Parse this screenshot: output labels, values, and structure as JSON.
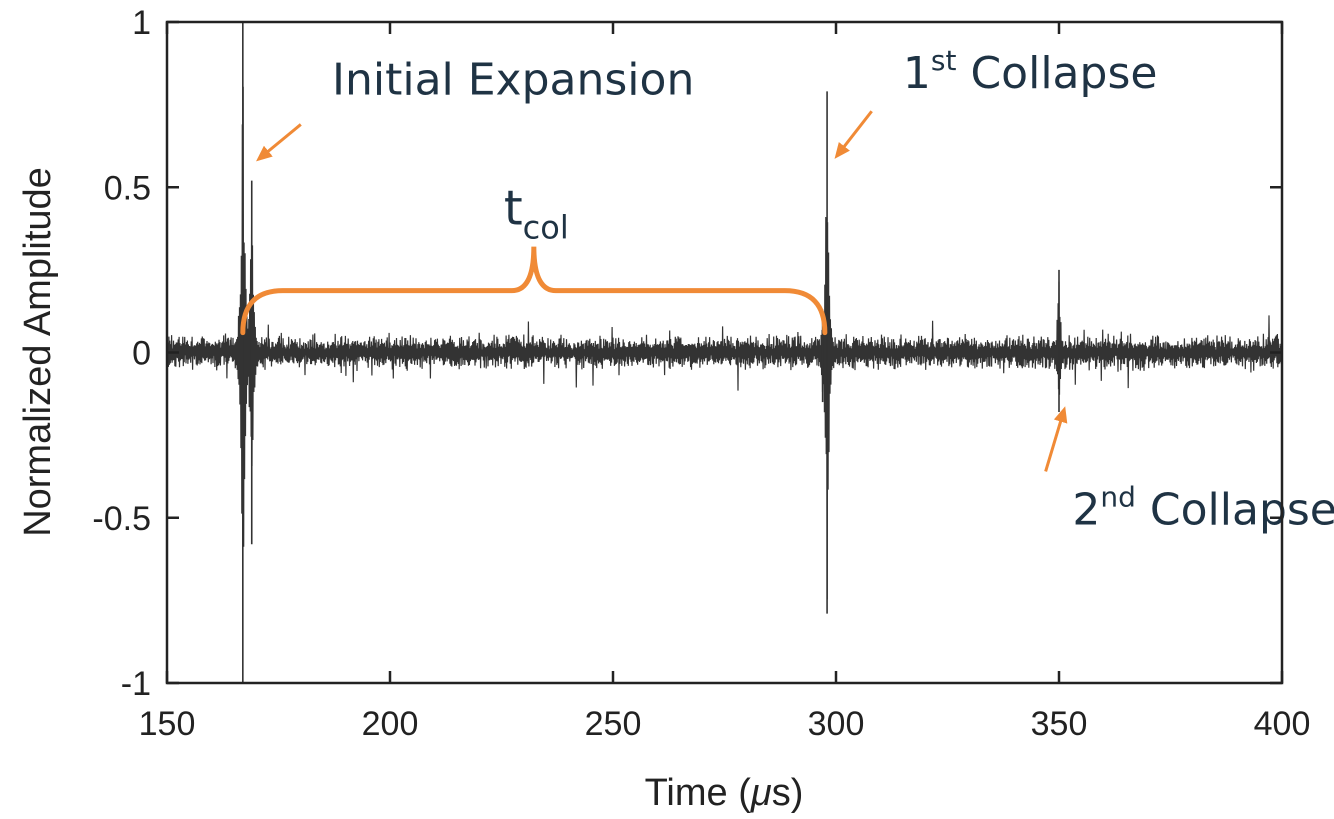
{
  "chart_data": {
    "type": "line",
    "title": "",
    "xlabel_pre": "Time (",
    "xlabel_mu": "μ",
    "xlabel_post": "s)",
    "ylabel": "Normalized Amplitude",
    "xlim": [
      150,
      400
    ],
    "ylim": [
      -1,
      1
    ],
    "xticks": [
      150,
      200,
      250,
      300,
      350,
      400
    ],
    "xtick_labels": [
      "150",
      "200",
      "250",
      "300",
      "350",
      "400"
    ],
    "yticks": [
      -1,
      -0.5,
      0,
      0.5,
      1
    ],
    "ytick_labels": [
      "-1",
      "-0.5",
      "0",
      "0.5",
      "1"
    ],
    "grid": false,
    "series": [
      {
        "color": "#333333",
        "noise_level": 0.04,
        "x_range": [
          150,
          400
        ],
        "events": [
          {
            "x": 167.0,
            "max": 1.0,
            "min": -1.0
          },
          {
            "x": 169.0,
            "max": 0.52,
            "min": -0.58
          },
          {
            "x": 297.0,
            "max": 0.13,
            "min": -0.15
          },
          {
            "x": 298.0,
            "max": 0.79,
            "min": -0.79
          },
          {
            "x": 350.0,
            "max": 0.25,
            "min": -0.18
          }
        ]
      }
    ],
    "annotations": [
      {
        "id": "initial",
        "base": "Initial Expansion",
        "sup": "",
        "text_x": 187,
        "text_y": 0.78,
        "arrow_from": [
          180,
          0.69
        ],
        "arrow_to": [
          171,
          0.59
        ]
      },
      {
        "id": "first",
        "base": "1",
        "sup": "st",
        "tail": " Collapse",
        "text_x": 315,
        "text_y": 0.8,
        "arrow_from": [
          308,
          0.73
        ],
        "arrow_to": [
          300.5,
          0.6
        ]
      },
      {
        "id": "second",
        "base": "2",
        "sup": "nd",
        "tail": " Collapse",
        "text_x": 353,
        "text_y": -0.52,
        "arrow_from": [
          347,
          -0.36
        ],
        "arrow_to": [
          351,
          -0.18
        ]
      }
    ],
    "brace": {
      "label_base": "t",
      "label_sub": "col",
      "x_start": 167,
      "x_end": 297.5,
      "y": 0.06,
      "color": "#f08a36"
    },
    "colors": {
      "annotation": "#f08a36",
      "annotation_text": "#1f3344",
      "axis": "#222222"
    }
  }
}
